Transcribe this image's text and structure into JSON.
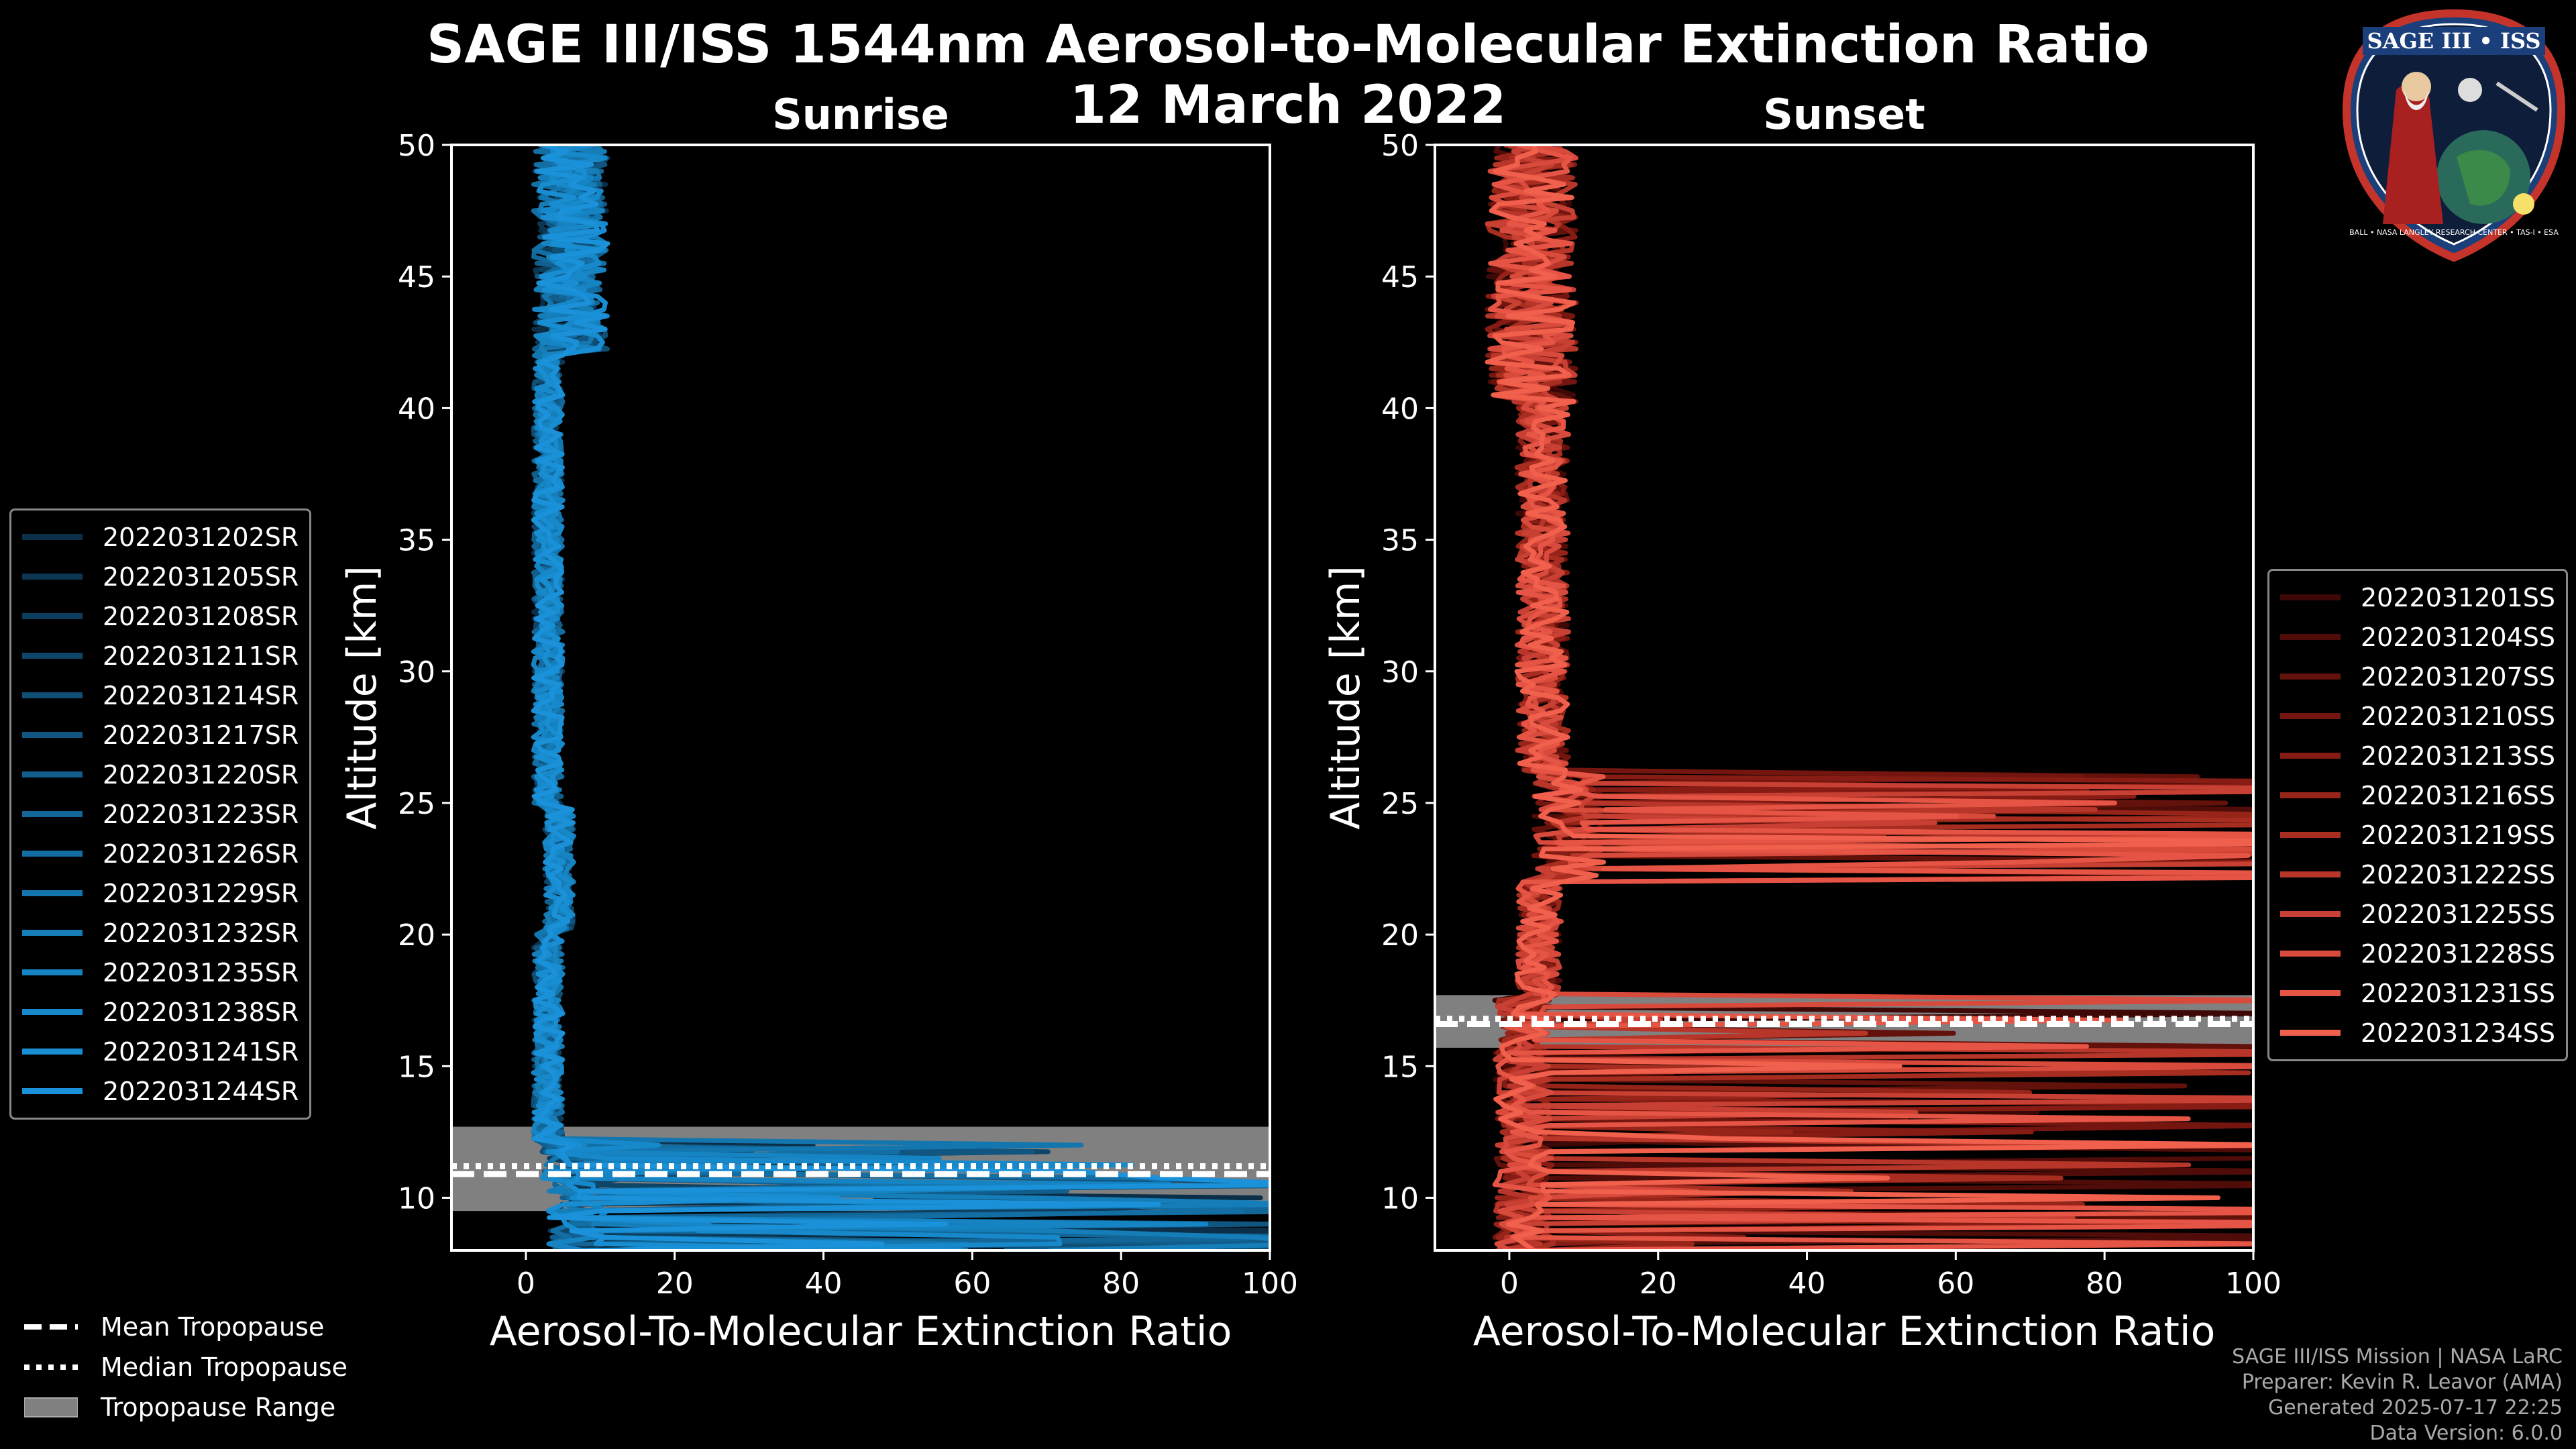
{
  "header": {
    "title": "SAGE III/ISS 1544nm Aerosol-to-Molecular Extinction Ratio",
    "date": "12 March 2022"
  },
  "colors": {
    "background": "#000000",
    "sunrise": "#1a8fd6",
    "sunset": "#f0604c",
    "tropopause_band": "#808080"
  },
  "chart_data": [
    {
      "type": "line",
      "title": "Sunrise",
      "xlabel": "Aerosol-To-Molecular Extinction Ratio",
      "ylabel": "Altitude [km]",
      "xlim": [
        -10,
        100
      ],
      "ylim": [
        8,
        50
      ],
      "xticks": [
        0,
        20,
        40,
        60,
        80,
        100
      ],
      "yticks": [
        10,
        15,
        20,
        25,
        30,
        35,
        40,
        45,
        50
      ],
      "tropopause": {
        "mean_km": 10.9,
        "median_km": 11.2,
        "range_km": [
          9.5,
          12.7
        ]
      },
      "series": [
        {
          "name": "2022031202SR",
          "color": "#0b2f48"
        },
        {
          "name": "2022031205SR",
          "color": "#0c3652"
        },
        {
          "name": "2022031208SR",
          "color": "#0d3e5e"
        },
        {
          "name": "2022031211SR",
          "color": "#0e4669"
        },
        {
          "name": "2022031214SR",
          "color": "#0f4e75"
        },
        {
          "name": "2022031217SR",
          "color": "#105681"
        },
        {
          "name": "2022031220SR",
          "color": "#115e8c"
        },
        {
          "name": "2022031223SR",
          "color": "#126698"
        },
        {
          "name": "2022031226SR",
          "color": "#136ea3"
        },
        {
          "name": "2022031229SR",
          "color": "#1476ae"
        },
        {
          "name": "2022031232SR",
          "color": "#157eb9"
        },
        {
          "name": "2022031235SR",
          "color": "#1683c2"
        },
        {
          "name": "2022031238SR",
          "color": "#1788ca"
        },
        {
          "name": "2022031241SR",
          "color": "#188dd1"
        },
        {
          "name": "2022031244SR",
          "color": "#1a91d8"
        }
      ],
      "profile_summary": "Ratio ~0-5 from 12-40 km, spread up to ~15 above 42 km; large values (30-100) below 12 km"
    },
    {
      "type": "line",
      "title": "Sunset",
      "xlabel": "Aerosol-To-Molecular Extinction Ratio",
      "ylabel": "Altitude [km]",
      "xlim": [
        -10,
        100
      ],
      "ylim": [
        8,
        50
      ],
      "xticks": [
        0,
        20,
        40,
        60,
        80,
        100
      ],
      "yticks": [
        10,
        15,
        20,
        25,
        30,
        35,
        40,
        45,
        50
      ],
      "tropopause": {
        "mean_km": 16.6,
        "median_km": 16.8,
        "range_km": [
          15.7,
          17.7
        ]
      },
      "series": [
        {
          "name": "2022031201SS",
          "color": "#3d0805"
        },
        {
          "name": "2022031204SS",
          "color": "#4f0c08"
        },
        {
          "name": "2022031207SS",
          "color": "#62110b"
        },
        {
          "name": "2022031210SS",
          "color": "#74160f"
        },
        {
          "name": "2022031213SS",
          "color": "#861c14"
        },
        {
          "name": "2022031216SS",
          "color": "#972419"
        },
        {
          "name": "2022031219SS",
          "color": "#a82d21"
        },
        {
          "name": "2022031222SS",
          "color": "#b83629"
        },
        {
          "name": "2022031225SS",
          "color": "#c84033"
        },
        {
          "name": "2022031228SS",
          "color": "#d84a3c"
        },
        {
          "name": "2022031231SS",
          "color": "#e55444"
        },
        {
          "name": "2022031234SS",
          "color": "#f0604c"
        }
      ],
      "profile_summary": "Ratio ~0-10 from 26-50 km; very large values (up to >100) between 22-25 km; scattered large values below 17 km"
    }
  ],
  "tropopause_legend": [
    {
      "label": "Mean Tropopause",
      "style": "dashed"
    },
    {
      "label": "Median Tropopause",
      "style": "dotted"
    },
    {
      "label": "Tropopause Range",
      "style": "band"
    }
  ],
  "logo": {
    "name": "SAGE III • ISS",
    "text": "BALL • NASA LANGLEY RESEARCH CENTER • TAS-I • ESA"
  },
  "credits": [
    "SAGE III/ISS Mission | NASA LaRC",
    "Preparer: Kevin R. Leavor (AMA)",
    "Generated 2025-07-17 22:25",
    "Data Version: 6.0.0"
  ]
}
